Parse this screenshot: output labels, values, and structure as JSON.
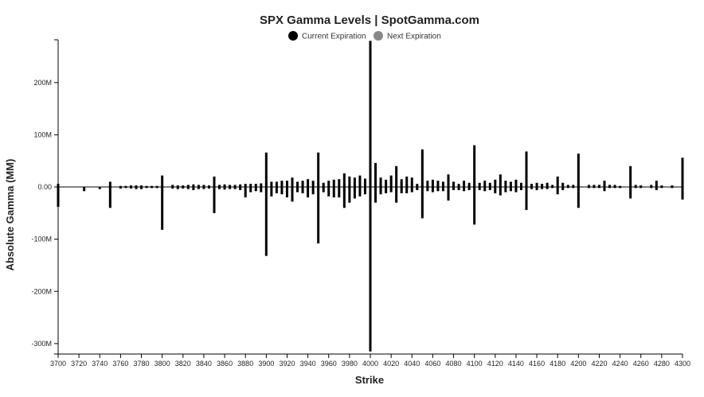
{
  "chart_data": {
    "type": "bar",
    "title": "SPX Gamma Levels | SpotGamma.com",
    "xlabel": "Strike",
    "ylabel": "Absolute Gamma (MM)",
    "ylim": [
      -320,
      282
    ],
    "y_ticks": [
      200,
      100,
      0,
      -100,
      -200,
      -300
    ],
    "y_tick_labels": [
      "200M",
      "100M",
      "0.00",
      "-100M",
      "-200M",
      "-300M"
    ],
    "x_range": [
      3700,
      4300
    ],
    "x_ticks": [
      3700,
      3720,
      3740,
      3760,
      3780,
      3800,
      3820,
      3840,
      3860,
      3880,
      3900,
      3920,
      3940,
      3960,
      3980,
      4000,
      4020,
      4040,
      4060,
      4080,
      4100,
      4120,
      4140,
      4160,
      4180,
      4200,
      4220,
      4240,
      4260,
      4280,
      4300
    ],
    "legend_position": "top-center",
    "legend": [
      {
        "label": "Current Expiration",
        "color": "#000000"
      },
      {
        "label": "Next Expiration",
        "color": "#888888"
      }
    ],
    "series": [
      {
        "name": "Current Expiration",
        "color": "#000000",
        "points": [
          [
            3700,
            6,
            -38
          ],
          [
            3725,
            0,
            -8
          ],
          [
            3740,
            0,
            -4
          ],
          [
            3750,
            10,
            -40
          ],
          [
            3760,
            2,
            -3
          ],
          [
            3765,
            2,
            -2
          ],
          [
            3770,
            3,
            -3
          ],
          [
            3775,
            3,
            -4
          ],
          [
            3780,
            3,
            -4
          ],
          [
            3785,
            2,
            -2
          ],
          [
            3790,
            2,
            -2
          ],
          [
            3795,
            2,
            -2
          ],
          [
            3800,
            22,
            -82
          ],
          [
            3810,
            4,
            -3
          ],
          [
            3815,
            3,
            -4
          ],
          [
            3820,
            3,
            -3
          ],
          [
            3825,
            4,
            -4
          ],
          [
            3830,
            5,
            -6
          ],
          [
            3835,
            4,
            -4
          ],
          [
            3840,
            4,
            -4
          ],
          [
            3845,
            3,
            -3
          ],
          [
            3850,
            20,
            -50
          ],
          [
            3855,
            4,
            -4
          ],
          [
            3860,
            5,
            -5
          ],
          [
            3865,
            4,
            -4
          ],
          [
            3870,
            4,
            -4
          ],
          [
            3875,
            5,
            -6
          ],
          [
            3880,
            6,
            -20
          ],
          [
            3885,
            6,
            -10
          ],
          [
            3890,
            6,
            -8
          ],
          [
            3895,
            7,
            -10
          ],
          [
            3900,
            66,
            -132
          ],
          [
            3905,
            10,
            -18
          ],
          [
            3910,
            10,
            -12
          ],
          [
            3915,
            12,
            -14
          ],
          [
            3920,
            12,
            -20
          ],
          [
            3925,
            18,
            -28
          ],
          [
            3930,
            10,
            -10
          ],
          [
            3935,
            12,
            -12
          ],
          [
            3940,
            15,
            -20
          ],
          [
            3945,
            12,
            -14
          ],
          [
            3950,
            66,
            -108
          ],
          [
            3955,
            8,
            -10
          ],
          [
            3960,
            12,
            -18
          ],
          [
            3965,
            14,
            -20
          ],
          [
            3970,
            15,
            -20
          ],
          [
            3975,
            26,
            -40
          ],
          [
            3980,
            20,
            -30
          ],
          [
            3985,
            18,
            -22
          ],
          [
            3990,
            22,
            -18
          ],
          [
            3995,
            16,
            -14
          ],
          [
            4000,
            280,
            -315
          ],
          [
            4005,
            46,
            -30
          ],
          [
            4010,
            18,
            -14
          ],
          [
            4015,
            14,
            -12
          ],
          [
            4020,
            22,
            -10
          ],
          [
            4025,
            40,
            -30
          ],
          [
            4030,
            15,
            -12
          ],
          [
            4035,
            20,
            -12
          ],
          [
            4040,
            18,
            -10
          ],
          [
            4045,
            6,
            -6
          ],
          [
            4050,
            72,
            -60
          ],
          [
            4055,
            12,
            -8
          ],
          [
            4060,
            14,
            -10
          ],
          [
            4065,
            12,
            -8
          ],
          [
            4070,
            10,
            -8
          ],
          [
            4075,
            24,
            -26
          ],
          [
            4080,
            10,
            -6
          ],
          [
            4085,
            6,
            -6
          ],
          [
            4090,
            12,
            -8
          ],
          [
            4095,
            8,
            -6
          ],
          [
            4100,
            80,
            -72
          ],
          [
            4105,
            8,
            -6
          ],
          [
            4110,
            12,
            -8
          ],
          [
            4115,
            8,
            -6
          ],
          [
            4120,
            14,
            -12
          ],
          [
            4125,
            24,
            -16
          ],
          [
            4130,
            12,
            -10
          ],
          [
            4135,
            10,
            -8
          ],
          [
            4140,
            14,
            -10
          ],
          [
            4145,
            8,
            -6
          ],
          [
            4150,
            68,
            -44
          ],
          [
            4155,
            6,
            -4
          ],
          [
            4160,
            8,
            -6
          ],
          [
            4165,
            6,
            -4
          ],
          [
            4170,
            8,
            -4
          ],
          [
            4175,
            4,
            -2
          ],
          [
            4180,
            20,
            -14
          ],
          [
            4185,
            8,
            -6
          ],
          [
            4190,
            4,
            -2
          ],
          [
            4195,
            4,
            -2
          ],
          [
            4200,
            64,
            -40
          ],
          [
            4210,
            4,
            -2
          ],
          [
            4215,
            4,
            -2
          ],
          [
            4220,
            4,
            -2
          ],
          [
            4225,
            12,
            -8
          ],
          [
            4230,
            4,
            -2
          ],
          [
            4235,
            4,
            -2
          ],
          [
            4240,
            2,
            -2
          ],
          [
            4250,
            40,
            -22
          ],
          [
            4255,
            4,
            -2
          ],
          [
            4260,
            3,
            -2
          ],
          [
            4270,
            4,
            -2
          ],
          [
            4275,
            12,
            -6
          ],
          [
            4280,
            3,
            -2
          ],
          [
            4290,
            3,
            -2
          ],
          [
            4300,
            56,
            -24
          ]
        ]
      },
      {
        "name": "Next Expiration",
        "color": "#888888",
        "points": [
          [
            3750,
            3,
            -2
          ],
          [
            3800,
            4,
            -4
          ],
          [
            3850,
            4,
            -4
          ],
          [
            3900,
            8,
            -8
          ],
          [
            3925,
            4,
            -4
          ],
          [
            3950,
            8,
            -6
          ],
          [
            3955,
            6,
            -6
          ],
          [
            3975,
            8,
            -6
          ],
          [
            3980,
            6,
            -6
          ],
          [
            3985,
            8,
            -8
          ],
          [
            3990,
            10,
            -10
          ],
          [
            3995,
            8,
            -8
          ],
          [
            4000,
            16,
            -28
          ],
          [
            4005,
            10,
            -8
          ],
          [
            4010,
            8,
            -8
          ],
          [
            4015,
            10,
            -10
          ],
          [
            4020,
            14,
            -8
          ],
          [
            4025,
            12,
            -10
          ],
          [
            4030,
            8,
            -6
          ],
          [
            4035,
            6,
            -4
          ],
          [
            4040,
            6,
            -6
          ],
          [
            4050,
            8,
            -6
          ],
          [
            4075,
            6,
            -4
          ],
          [
            4100,
            8,
            -6
          ],
          [
            4125,
            6,
            -4
          ],
          [
            4150,
            6,
            -4
          ],
          [
            4200,
            6,
            -4
          ]
        ]
      }
    ]
  }
}
